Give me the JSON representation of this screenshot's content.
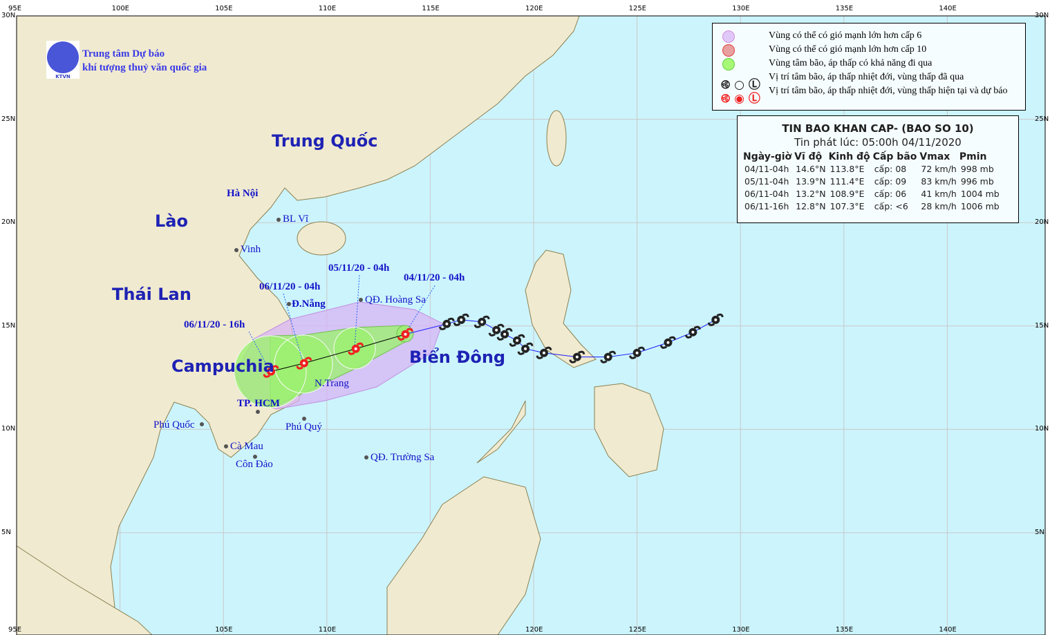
{
  "header": {
    "org_line1": "Trung tâm Dự báo",
    "org_line2": "khí tượng thuỷ văn quốc gia",
    "logo_text": "KTVN"
  },
  "axes": {
    "top": [
      "95E",
      "100E",
      "105E",
      "110E",
      "115E",
      "120E",
      "125E",
      "130E",
      "135E",
      "140E"
    ],
    "bottom": [
      "95E",
      "105E",
      "110E",
      "120E",
      "125E",
      "130E",
      "135E",
      "140E"
    ],
    "left": [
      "30N",
      "25N",
      "20N",
      "15N",
      "10N",
      "5N"
    ],
    "right": [
      "30N",
      "25N",
      "20N",
      "15N",
      "10N",
      "5N"
    ]
  },
  "legend": {
    "items": [
      {
        "label": "Vùng có thể có gió mạnh lớn hơn cấp 6",
        "color": "#e0c8f8"
      },
      {
        "label": "Vùng có thể có gió mạnh lớn hơn cấp 10",
        "color": "#e8a0a0"
      },
      {
        "label": "Vùng tâm bão, áp thấp có khả năng đi qua",
        "color": "#a8f878"
      },
      {
        "label": "Vị trí tâm bão, áp thấp nhiệt đới, vùng thấp đã qua",
        "color": "#222222"
      },
      {
        "label": "Vị trí tâm bão, áp thấp nhiệt đới, vùng thấp hiện tại và dự báo",
        "color": "#f02020"
      }
    ]
  },
  "bulletin": {
    "title": "TIN BAO KHAN CAP- (BAO SO 10)",
    "issued": "Tin phát lúc: 05:00h 04/11/2020",
    "columns": [
      "Ngày-giờ",
      "Vĩ độ",
      "Kinh độ",
      "Cấp bão",
      "Vmax",
      "Pmin"
    ],
    "rows": [
      [
        "04/11-04h",
        "14.6°N",
        "113.8°E",
        "cấp: 08",
        "72 km/h",
        "998 mb"
      ],
      [
        "05/11-04h",
        "13.9°N",
        "111.4°E",
        "cấp: 09",
        "83 km/h",
        "996 mb"
      ],
      [
        "06/11-04h",
        "13.2°N",
        "108.9°E",
        "cấp: 06",
        "41 km/h",
        "1004 mb"
      ],
      [
        "06/11-16h",
        "12.8°N",
        "107.3°E",
        "cấp: <6",
        "28 km/h",
        "1006 mb"
      ]
    ]
  },
  "countries": [
    "Trung Quốc",
    "Lào",
    "Thái Lan",
    "Campuchia",
    "Biển Đông"
  ],
  "places": [
    "Hà Nội",
    "BL Vĩ",
    "Vinh",
    "Đ.Nẵng",
    "QĐ. Hoàng Sa",
    "N.Trang",
    "TP. HCM",
    "Phú Quốc",
    "Cà Mau",
    "Côn Đảo",
    "Phú Quý",
    "QĐ. Trường Sa"
  ],
  "forecast_labels": [
    "04/11/20 - 04h",
    "05/11/20 - 04h",
    "06/11/20 - 04h",
    "06/11/20 - 16h"
  ],
  "track": {
    "past": [
      [
        128.8,
        15.3
      ],
      [
        127.7,
        14.7
      ],
      [
        126.5,
        14.2
      ],
      [
        125.0,
        13.7
      ],
      [
        123.6,
        13.5
      ],
      [
        122.1,
        13.5
      ],
      [
        120.5,
        13.7
      ],
      [
        119.6,
        13.9
      ],
      [
        119.2,
        14.3
      ],
      [
        118.6,
        14.6
      ],
      [
        118.2,
        14.8
      ],
      [
        117.5,
        15.2
      ],
      [
        116.5,
        15.3
      ],
      [
        115.8,
        15.1
      ]
    ],
    "forecast": [
      [
        113.8,
        14.6
      ],
      [
        111.4,
        13.9
      ],
      [
        108.9,
        13.2
      ],
      [
        107.3,
        12.8
      ]
    ]
  },
  "colors": {
    "sea": "#ccf4fc",
    "land": "#f0ead0",
    "past": "#222222",
    "forecast": "#f02020",
    "track_line": "#1a1aff"
  }
}
